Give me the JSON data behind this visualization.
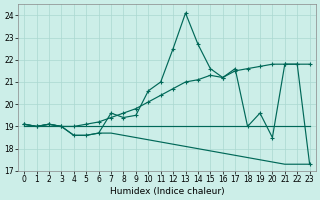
{
  "xlabel": "Humidex (Indice chaleur)",
  "bg_color": "#cceee8",
  "grid_color": "#aad8d0",
  "line_color": "#006858",
  "xlim": [
    -0.5,
    23.5
  ],
  "ylim": [
    17,
    24.5
  ],
  "yticks": [
    17,
    18,
    19,
    20,
    21,
    22,
    23,
    24
  ],
  "xticks": [
    0,
    1,
    2,
    3,
    4,
    5,
    6,
    7,
    8,
    9,
    10,
    11,
    12,
    13,
    14,
    15,
    16,
    17,
    18,
    19,
    20,
    21,
    22,
    23
  ],
  "y_zigzag": [
    19.1,
    19.0,
    19.1,
    19.0,
    18.6,
    18.6,
    18.7,
    19.6,
    19.4,
    19.5,
    20.6,
    21.0,
    22.5,
    24.1,
    22.7,
    21.6,
    21.2,
    21.6,
    19.0,
    19.6,
    18.5,
    21.8,
    21.8,
    17.3
  ],
  "y_zigzag_has_marker": [
    1,
    1,
    1,
    1,
    1,
    1,
    1,
    1,
    1,
    1,
    1,
    1,
    1,
    1,
    1,
    1,
    1,
    1,
    0,
    1,
    1,
    1,
    1,
    1
  ],
  "y_rise": [
    19.1,
    19.0,
    19.1,
    19.0,
    19.0,
    19.1,
    19.2,
    19.4,
    19.6,
    19.8,
    20.1,
    20.4,
    20.7,
    21.0,
    21.1,
    21.3,
    21.2,
    21.5,
    21.6,
    21.7,
    21.8,
    21.8,
    21.8,
    21.8
  ],
  "y_flat": [
    19.0,
    19.0,
    19.0,
    19.0,
    19.0,
    19.0,
    19.0,
    19.0,
    19.0,
    19.0,
    19.0,
    19.0,
    19.0,
    19.0,
    19.0,
    19.0,
    19.0,
    19.0,
    19.0,
    19.0,
    19.0,
    19.0,
    19.0,
    19.0
  ],
  "y_decline": [
    19.1,
    19.0,
    19.1,
    19.0,
    18.6,
    18.6,
    18.7,
    18.7,
    18.6,
    18.5,
    18.4,
    18.3,
    18.2,
    18.1,
    18.0,
    17.9,
    17.8,
    17.7,
    17.6,
    17.5,
    17.4,
    17.3,
    17.3,
    17.3
  ]
}
